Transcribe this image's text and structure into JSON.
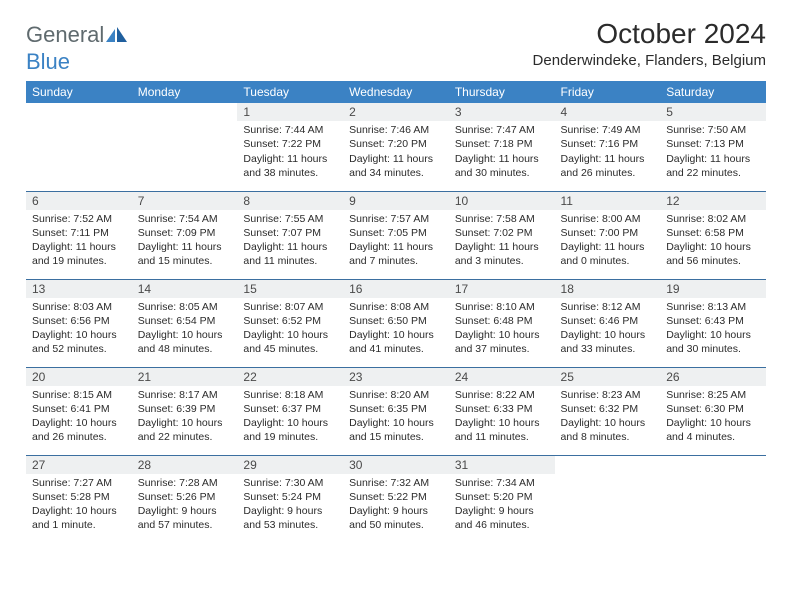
{
  "brand": {
    "part1": "General",
    "part2": "Blue"
  },
  "title": "October 2024",
  "location": "Denderwindeke, Flanders, Belgium",
  "day_headers": [
    "Sunday",
    "Monday",
    "Tuesday",
    "Wednesday",
    "Thursday",
    "Friday",
    "Saturday"
  ],
  "colors": {
    "header_bg": "#3b82c4",
    "header_text": "#ffffff",
    "daynum_bg": "#eef0f1",
    "row_border": "#3b6fa0",
    "logo_gray": "#5f6a6e",
    "logo_blue": "#3b82c4"
  },
  "weeks": [
    [
      {
        "day": "",
        "sunrise": "",
        "sunset": "",
        "daylight": "",
        "empty": true
      },
      {
        "day": "",
        "sunrise": "",
        "sunset": "",
        "daylight": "",
        "empty": true
      },
      {
        "day": "1",
        "sunrise": "Sunrise: 7:44 AM",
        "sunset": "Sunset: 7:22 PM",
        "daylight": "Daylight: 11 hours and 38 minutes."
      },
      {
        "day": "2",
        "sunrise": "Sunrise: 7:46 AM",
        "sunset": "Sunset: 7:20 PM",
        "daylight": "Daylight: 11 hours and 34 minutes."
      },
      {
        "day": "3",
        "sunrise": "Sunrise: 7:47 AM",
        "sunset": "Sunset: 7:18 PM",
        "daylight": "Daylight: 11 hours and 30 minutes."
      },
      {
        "day": "4",
        "sunrise": "Sunrise: 7:49 AM",
        "sunset": "Sunset: 7:16 PM",
        "daylight": "Daylight: 11 hours and 26 minutes."
      },
      {
        "day": "5",
        "sunrise": "Sunrise: 7:50 AM",
        "sunset": "Sunset: 7:13 PM",
        "daylight": "Daylight: 11 hours and 22 minutes."
      }
    ],
    [
      {
        "day": "6",
        "sunrise": "Sunrise: 7:52 AM",
        "sunset": "Sunset: 7:11 PM",
        "daylight": "Daylight: 11 hours and 19 minutes."
      },
      {
        "day": "7",
        "sunrise": "Sunrise: 7:54 AM",
        "sunset": "Sunset: 7:09 PM",
        "daylight": "Daylight: 11 hours and 15 minutes."
      },
      {
        "day": "8",
        "sunrise": "Sunrise: 7:55 AM",
        "sunset": "Sunset: 7:07 PM",
        "daylight": "Daylight: 11 hours and 11 minutes."
      },
      {
        "day": "9",
        "sunrise": "Sunrise: 7:57 AM",
        "sunset": "Sunset: 7:05 PM",
        "daylight": "Daylight: 11 hours and 7 minutes."
      },
      {
        "day": "10",
        "sunrise": "Sunrise: 7:58 AM",
        "sunset": "Sunset: 7:02 PM",
        "daylight": "Daylight: 11 hours and 3 minutes."
      },
      {
        "day": "11",
        "sunrise": "Sunrise: 8:00 AM",
        "sunset": "Sunset: 7:00 PM",
        "daylight": "Daylight: 11 hours and 0 minutes."
      },
      {
        "day": "12",
        "sunrise": "Sunrise: 8:02 AM",
        "sunset": "Sunset: 6:58 PM",
        "daylight": "Daylight: 10 hours and 56 minutes."
      }
    ],
    [
      {
        "day": "13",
        "sunrise": "Sunrise: 8:03 AM",
        "sunset": "Sunset: 6:56 PM",
        "daylight": "Daylight: 10 hours and 52 minutes."
      },
      {
        "day": "14",
        "sunrise": "Sunrise: 8:05 AM",
        "sunset": "Sunset: 6:54 PM",
        "daylight": "Daylight: 10 hours and 48 minutes."
      },
      {
        "day": "15",
        "sunrise": "Sunrise: 8:07 AM",
        "sunset": "Sunset: 6:52 PM",
        "daylight": "Daylight: 10 hours and 45 minutes."
      },
      {
        "day": "16",
        "sunrise": "Sunrise: 8:08 AM",
        "sunset": "Sunset: 6:50 PM",
        "daylight": "Daylight: 10 hours and 41 minutes."
      },
      {
        "day": "17",
        "sunrise": "Sunrise: 8:10 AM",
        "sunset": "Sunset: 6:48 PM",
        "daylight": "Daylight: 10 hours and 37 minutes."
      },
      {
        "day": "18",
        "sunrise": "Sunrise: 8:12 AM",
        "sunset": "Sunset: 6:46 PM",
        "daylight": "Daylight: 10 hours and 33 minutes."
      },
      {
        "day": "19",
        "sunrise": "Sunrise: 8:13 AM",
        "sunset": "Sunset: 6:43 PM",
        "daylight": "Daylight: 10 hours and 30 minutes."
      }
    ],
    [
      {
        "day": "20",
        "sunrise": "Sunrise: 8:15 AM",
        "sunset": "Sunset: 6:41 PM",
        "daylight": "Daylight: 10 hours and 26 minutes."
      },
      {
        "day": "21",
        "sunrise": "Sunrise: 8:17 AM",
        "sunset": "Sunset: 6:39 PM",
        "daylight": "Daylight: 10 hours and 22 minutes."
      },
      {
        "day": "22",
        "sunrise": "Sunrise: 8:18 AM",
        "sunset": "Sunset: 6:37 PM",
        "daylight": "Daylight: 10 hours and 19 minutes."
      },
      {
        "day": "23",
        "sunrise": "Sunrise: 8:20 AM",
        "sunset": "Sunset: 6:35 PM",
        "daylight": "Daylight: 10 hours and 15 minutes."
      },
      {
        "day": "24",
        "sunrise": "Sunrise: 8:22 AM",
        "sunset": "Sunset: 6:33 PM",
        "daylight": "Daylight: 10 hours and 11 minutes."
      },
      {
        "day": "25",
        "sunrise": "Sunrise: 8:23 AM",
        "sunset": "Sunset: 6:32 PM",
        "daylight": "Daylight: 10 hours and 8 minutes."
      },
      {
        "day": "26",
        "sunrise": "Sunrise: 8:25 AM",
        "sunset": "Sunset: 6:30 PM",
        "daylight": "Daylight: 10 hours and 4 minutes."
      }
    ],
    [
      {
        "day": "27",
        "sunrise": "Sunrise: 7:27 AM",
        "sunset": "Sunset: 5:28 PM",
        "daylight": "Daylight: 10 hours and 1 minute."
      },
      {
        "day": "28",
        "sunrise": "Sunrise: 7:28 AM",
        "sunset": "Sunset: 5:26 PM",
        "daylight": "Daylight: 9 hours and 57 minutes."
      },
      {
        "day": "29",
        "sunrise": "Sunrise: 7:30 AM",
        "sunset": "Sunset: 5:24 PM",
        "daylight": "Daylight: 9 hours and 53 minutes."
      },
      {
        "day": "30",
        "sunrise": "Sunrise: 7:32 AM",
        "sunset": "Sunset: 5:22 PM",
        "daylight": "Daylight: 9 hours and 50 minutes."
      },
      {
        "day": "31",
        "sunrise": "Sunrise: 7:34 AM",
        "sunset": "Sunset: 5:20 PM",
        "daylight": "Daylight: 9 hours and 46 minutes."
      },
      {
        "day": "",
        "sunrise": "",
        "sunset": "",
        "daylight": "",
        "empty": true
      },
      {
        "day": "",
        "sunrise": "",
        "sunset": "",
        "daylight": "",
        "empty": true
      }
    ]
  ]
}
